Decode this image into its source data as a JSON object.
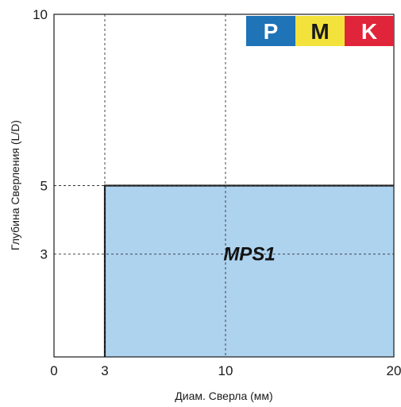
{
  "chart_data": {
    "type": "area",
    "xlabel": "Диам. Сверла (мм)",
    "ylabel": "Глубина Сверления (L/D)",
    "xlim": [
      0,
      20
    ],
    "ylim": [
      0,
      10
    ],
    "x_scale_note": "nonlinear",
    "x_ticks": [
      {
        "value": 0,
        "label": "0"
      },
      {
        "value": 3,
        "label": "3"
      },
      {
        "value": 10,
        "label": "10"
      },
      {
        "value": 20,
        "label": "20"
      }
    ],
    "y_ticks": [
      {
        "value": 3,
        "label": "3"
      },
      {
        "value": 5,
        "label": "5"
      },
      {
        "value": 10,
        "label": "10"
      }
    ],
    "grid": "dashed at tick values",
    "regions": [
      {
        "label": "MPS1",
        "x": [
          3,
          20
        ],
        "y": [
          0,
          5
        ],
        "color": "#aed3ef"
      }
    ],
    "badges": [
      {
        "letter": "P",
        "bg": "#1f73b7",
        "fg": "#ffffff"
      },
      {
        "letter": "M",
        "bg": "#f3e23b",
        "fg": "#1a1a1a"
      },
      {
        "letter": "K",
        "bg": "#e0243a",
        "fg": "#ffffff"
      }
    ]
  }
}
